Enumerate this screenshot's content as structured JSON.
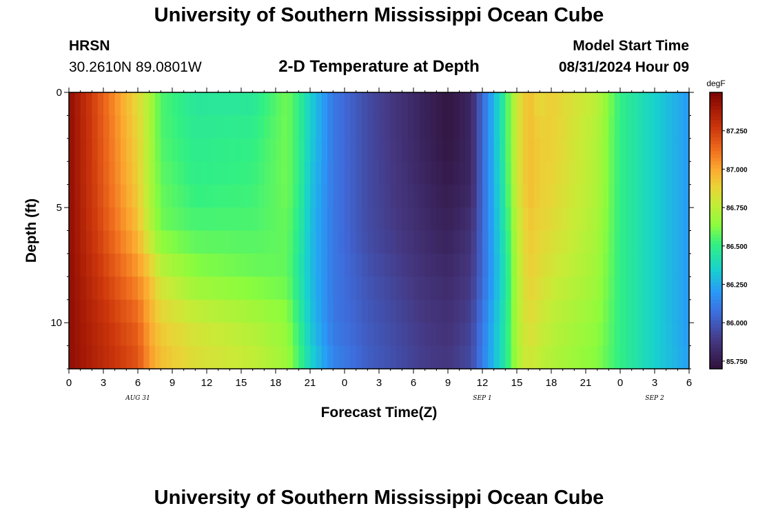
{
  "page": {
    "title": "University of Southern Mississippi Ocean Cube",
    "station": "HRSN",
    "coords": "30.2610N  89.0801W",
    "plot_title": "2-D Temperature at Depth",
    "model_label": "Model Start Time",
    "model_time": "08/31/2024 Hour 09",
    "footer_title": "University of Southern Mississippi Ocean Cube"
  },
  "chart_data": {
    "type": "heatmap",
    "title": "2-D Temperature at Depth",
    "xlabel": "Forecast Time(Z)",
    "ylabel": "Depth (ft)",
    "x_ticks": [
      "0",
      "3",
      "6",
      "9",
      "12",
      "15",
      "18",
      "21",
      "0",
      "3",
      "6",
      "9",
      "12",
      "15",
      "18",
      "21",
      "0",
      "3",
      "6"
    ],
    "date_labels": [
      {
        "label": "AUG 31",
        "tick_index": 2
      },
      {
        "label": "SEP 1",
        "tick_index": 12
      },
      {
        "label": "SEP 2",
        "tick_index": 17
      }
    ],
    "y_range": [
      0,
      12
    ],
    "y_ticks": [
      0,
      5,
      10
    ],
    "colorbar": {
      "unit": "degF",
      "min": 85.7,
      "max": 87.5,
      "tick_values": [
        85.75,
        86.0,
        86.25,
        86.5,
        86.75,
        87.0,
        87.25
      ],
      "tick_labels": [
        "85.750",
        "86.000",
        "86.250",
        "86.500",
        "86.750",
        "87.000",
        "87.250"
      ]
    },
    "hours": [
      0,
      6,
      7,
      8,
      11,
      16,
      19,
      20,
      21,
      23,
      26,
      31,
      33,
      35,
      36,
      38,
      39,
      40,
      41,
      42,
      46,
      48,
      51,
      54
    ],
    "depths_ft": [
      0,
      2,
      4,
      6,
      8,
      10,
      12
    ],
    "temperature_degF": [
      [
        87.45,
        86.85,
        86.72,
        86.55,
        86.45,
        86.45,
        86.6,
        86.5,
        86.35,
        86.1,
        85.95,
        85.78,
        85.72,
        85.8,
        86.05,
        86.5,
        86.8,
        86.95,
        86.85,
        86.9,
        86.75,
        86.5,
        86.35,
        86.2
      ],
      [
        87.45,
        86.88,
        86.72,
        86.55,
        86.48,
        86.5,
        86.6,
        86.5,
        86.35,
        86.1,
        85.95,
        85.78,
        85.72,
        85.8,
        86.05,
        86.5,
        86.8,
        86.95,
        86.9,
        86.9,
        86.72,
        86.5,
        86.35,
        86.2
      ],
      [
        87.45,
        86.9,
        86.72,
        86.58,
        86.5,
        86.52,
        86.6,
        86.5,
        86.32,
        86.1,
        85.95,
        85.8,
        85.75,
        85.8,
        86.05,
        86.48,
        86.8,
        86.95,
        86.9,
        86.88,
        86.72,
        86.5,
        86.35,
        86.2
      ],
      [
        87.45,
        86.95,
        86.75,
        86.6,
        86.55,
        86.55,
        86.58,
        86.48,
        86.3,
        86.1,
        85.95,
        85.82,
        85.78,
        85.85,
        86.05,
        86.45,
        86.75,
        86.92,
        86.88,
        86.85,
        86.7,
        86.5,
        86.35,
        86.2
      ],
      [
        87.45,
        87.05,
        86.95,
        86.78,
        86.65,
        86.6,
        86.58,
        86.45,
        86.3,
        86.1,
        85.98,
        85.85,
        85.82,
        85.88,
        86.05,
        86.42,
        86.72,
        86.9,
        86.85,
        86.8,
        86.68,
        86.5,
        86.35,
        86.2
      ],
      [
        87.45,
        87.15,
        87.0,
        86.9,
        86.8,
        86.72,
        86.65,
        86.5,
        86.32,
        86.1,
        86.0,
        85.88,
        85.85,
        85.92,
        86.1,
        86.45,
        86.72,
        86.85,
        86.8,
        86.75,
        86.65,
        86.5,
        86.35,
        86.2
      ],
      [
        87.45,
        87.2,
        87.05,
        86.95,
        86.85,
        86.78,
        86.68,
        86.55,
        86.38,
        86.15,
        86.02,
        85.9,
        85.88,
        85.95,
        86.12,
        86.45,
        86.7,
        86.8,
        86.75,
        86.72,
        86.62,
        86.5,
        86.35,
        86.22
      ]
    ]
  }
}
